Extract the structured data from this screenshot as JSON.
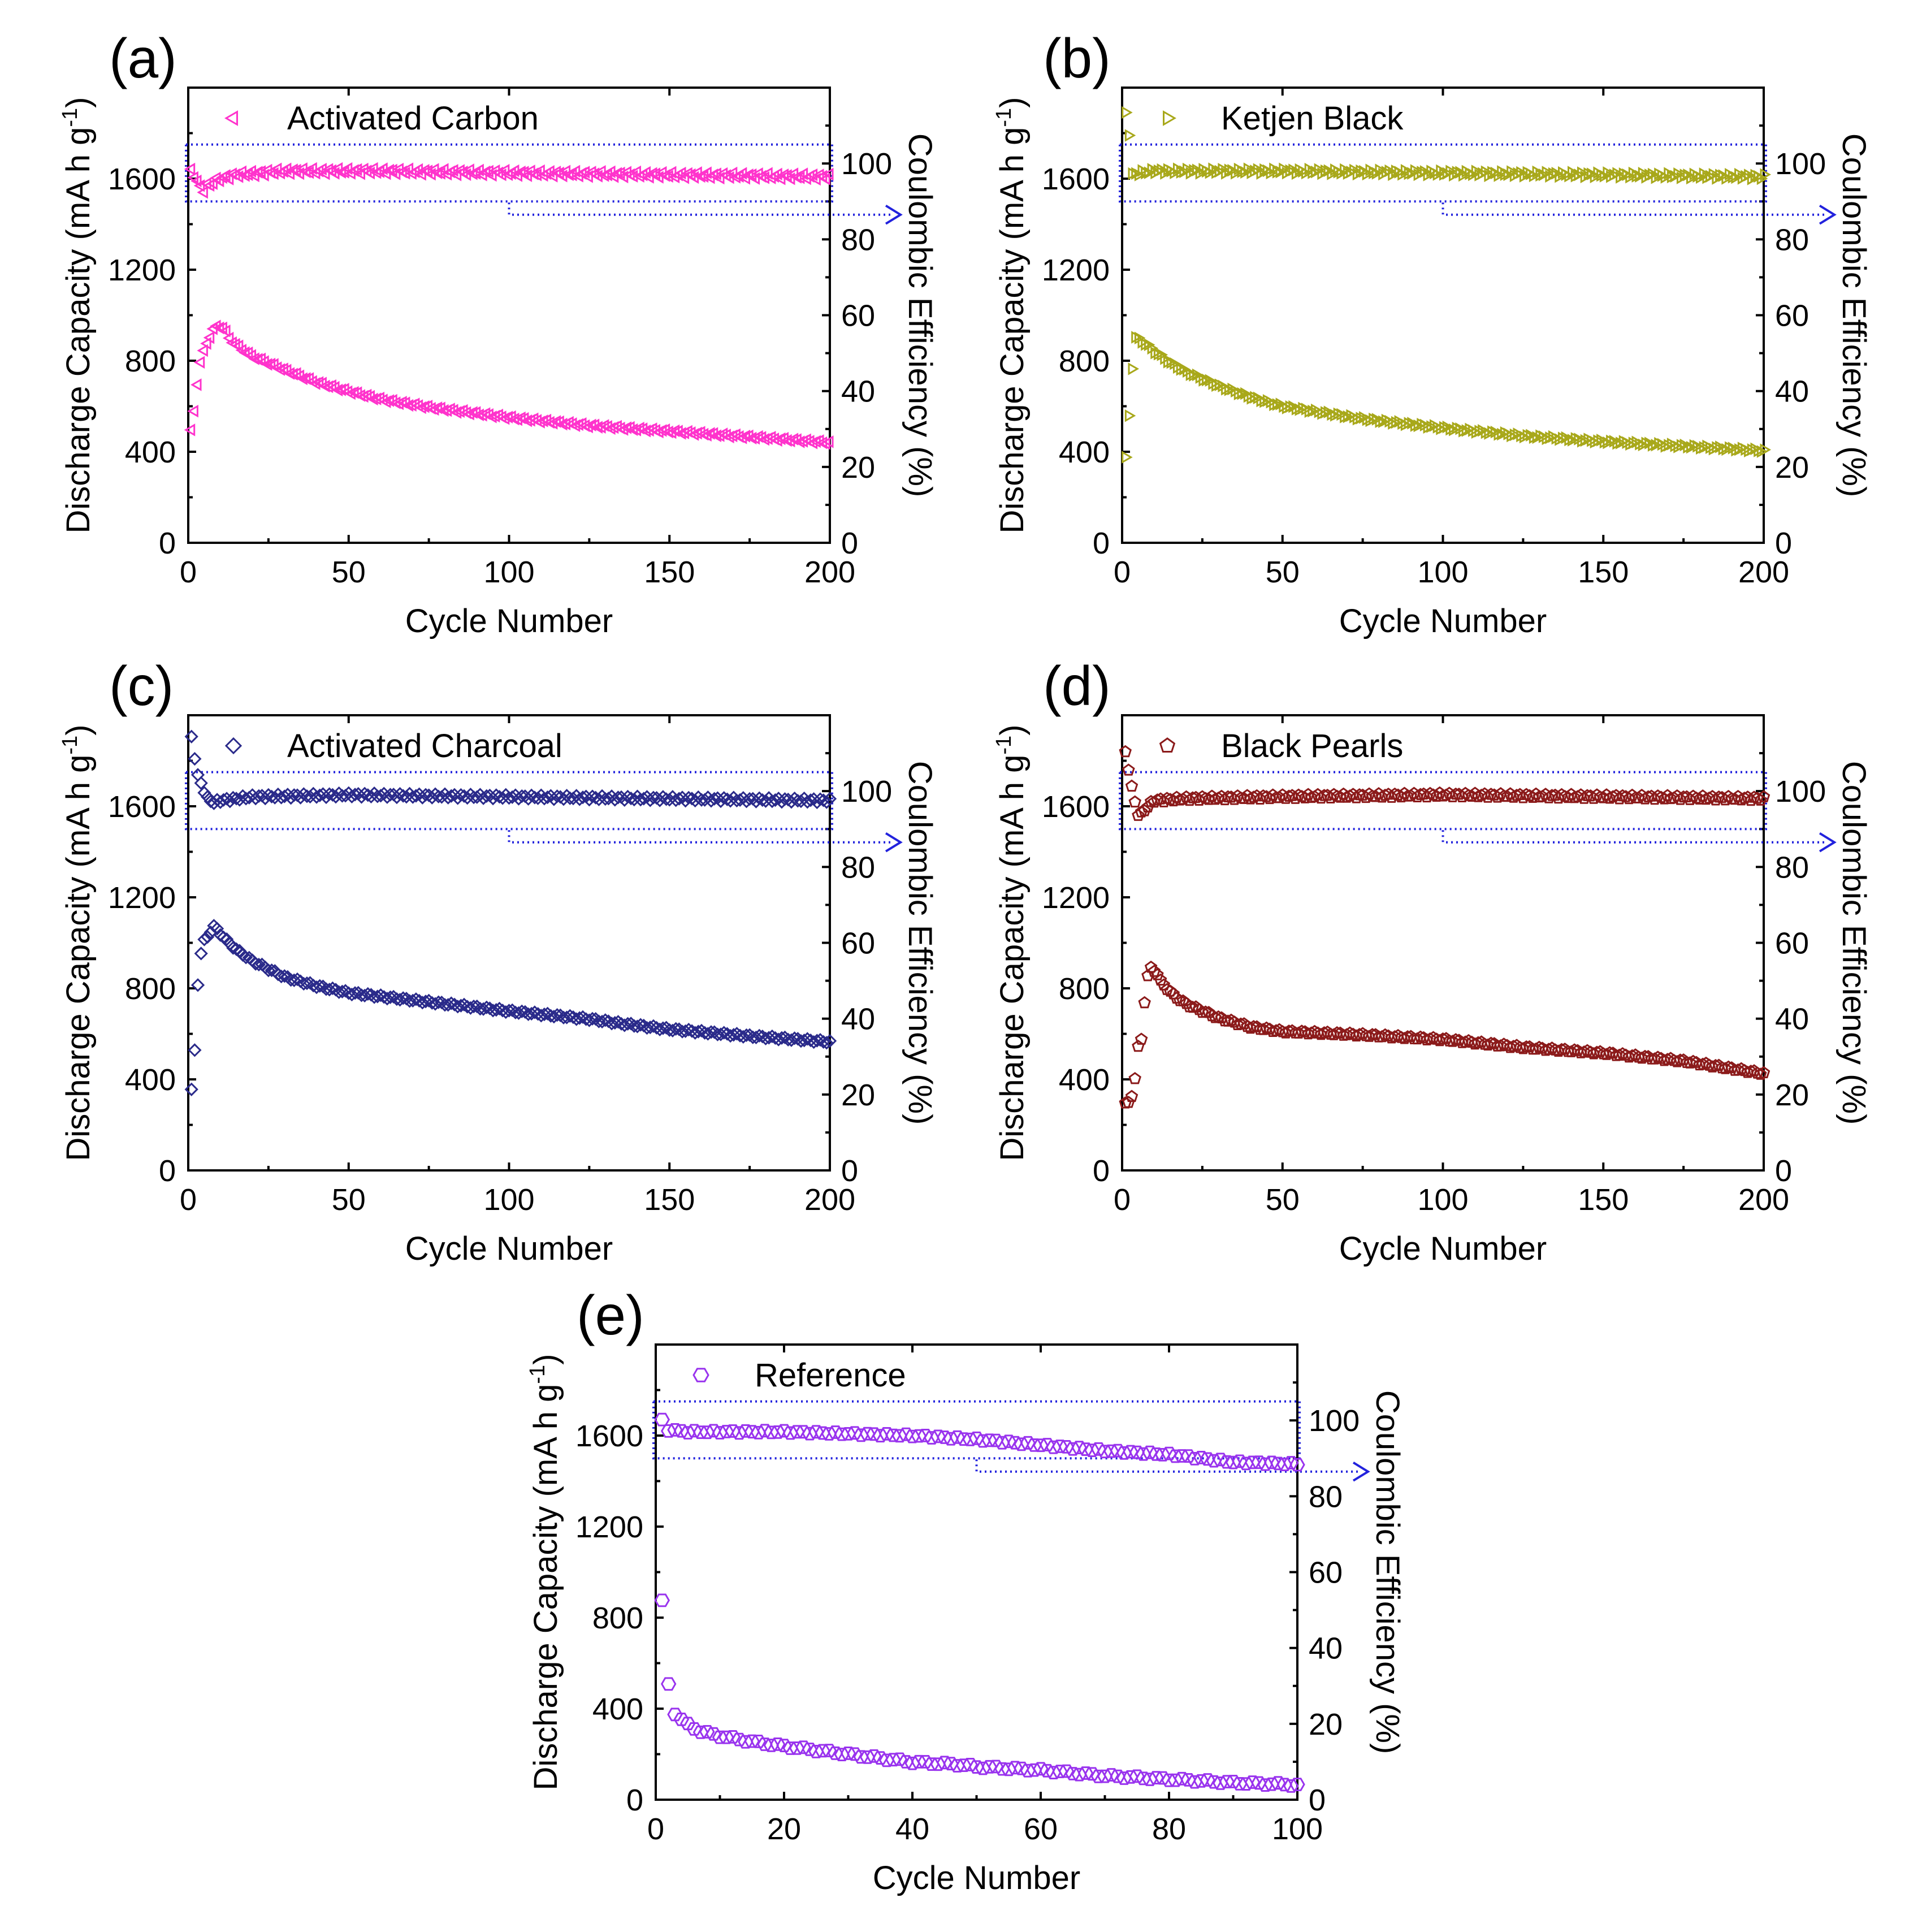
{
  "chart_data": [
    {
      "id": "a",
      "type": "scatter",
      "panel_label": "(a)",
      "legend": "Activated Carbon",
      "marker": "triangle-left",
      "color": "#ff33cc",
      "xlabel": "Cycle Number",
      "ylabel": "Discharge Capacity (mA h g",
      "ylabel_sup": "-1",
      "ylabel_tail": ")",
      "y2label": "Coulombic Efficiency (%)",
      "xlim": [
        0,
        200
      ],
      "ylim": [
        0,
        2000
      ],
      "y2lim": [
        0,
        120
      ],
      "xticks": [
        "0",
        "50",
        "100",
        "150",
        "200"
      ],
      "yticks": [
        "0",
        "400",
        "800",
        "1200",
        "1600"
      ],
      "y2ticks": [
        "0",
        "20",
        "40",
        "60",
        "80",
        "100"
      ],
      "n": 200,
      "capacity_points": [
        [
          1,
          490
        ],
        [
          2,
          580
        ],
        [
          3,
          700
        ],
        [
          4,
          790
        ],
        [
          5,
          840
        ],
        [
          6,
          880
        ],
        [
          7,
          905
        ],
        [
          8,
          935
        ],
        [
          9,
          950
        ],
        [
          10,
          950
        ],
        [
          11,
          945
        ],
        [
          12,
          925
        ],
        [
          13,
          900
        ],
        [
          15,
          870
        ],
        [
          20,
          820
        ],
        [
          30,
          760
        ],
        [
          40,
          705
        ],
        [
          50,
          665
        ],
        [
          60,
          630
        ],
        [
          75,
          595
        ],
        [
          100,
          550
        ],
        [
          125,
          515
        ],
        [
          150,
          490
        ],
        [
          175,
          465
        ],
        [
          200,
          440
        ]
      ],
      "efficiency_points": [
        [
          1,
          98
        ],
        [
          2,
          97
        ],
        [
          3,
          95
        ],
        [
          4,
          94
        ],
        [
          5,
          93
        ],
        [
          6,
          94
        ],
        [
          8,
          95
        ],
        [
          10,
          96
        ],
        [
          15,
          97
        ],
        [
          30,
          98
        ],
        [
          60,
          98
        ],
        [
          100,
          97.5
        ],
        [
          150,
          97
        ],
        [
          200,
          96.5
        ]
      ],
      "efficiency_noise": 0.7,
      "highlight_box_pct": [
        90,
        105
      ],
      "arrow_from_cycle": 100
    },
    {
      "id": "b",
      "type": "scatter",
      "panel_label": "(b)",
      "legend": "Ketjen Black",
      "marker": "triangle-right",
      "color": "#a8a81a",
      "xlabel": "Cycle Number",
      "ylabel": "Discharge Capacity (mA h g",
      "ylabel_sup": "-1",
      "ylabel_tail": ")",
      "y2label": "Coulombic Efficiency (%)",
      "xlim": [
        0,
        200
      ],
      "ylim": [
        0,
        2000
      ],
      "y2lim": [
        0,
        120
      ],
      "xticks": [
        "0",
        "50",
        "100",
        "150",
        "200"
      ],
      "yticks": [
        "0",
        "400",
        "800",
        "1200",
        "1600"
      ],
      "y2ticks": [
        "0",
        "20",
        "40",
        "60",
        "80",
        "100"
      ],
      "n": 200,
      "capacity_points": [
        [
          1,
          370
        ],
        [
          2,
          560
        ],
        [
          3,
          770
        ],
        [
          4,
          900
        ],
        [
          5,
          895
        ],
        [
          6,
          885
        ],
        [
          8,
          865
        ],
        [
          10,
          840
        ],
        [
          15,
          790
        ],
        [
          20,
          750
        ],
        [
          30,
          690
        ],
        [
          40,
          640
        ],
        [
          50,
          600
        ],
        [
          75,
          545
        ],
        [
          100,
          505
        ],
        [
          125,
          470
        ],
        [
          150,
          445
        ],
        [
          175,
          425
        ],
        [
          200,
          405
        ]
      ],
      "efficiency_points": [
        [
          1,
          113
        ],
        [
          2,
          108
        ],
        [
          3,
          97
        ],
        [
          5,
          97.5
        ],
        [
          10,
          98
        ],
        [
          50,
          98
        ],
        [
          100,
          97.5
        ],
        [
          150,
          97
        ],
        [
          200,
          96.5
        ]
      ],
      "efficiency_noise": 0.6,
      "highlight_box_pct": [
        90,
        105
      ],
      "arrow_from_cycle": 100
    },
    {
      "id": "c",
      "type": "scatter",
      "panel_label": "(c)",
      "legend": "Activated Charcoal",
      "marker": "diamond",
      "color": "#2a2a8a",
      "xlabel": "Cycle Number",
      "ylabel": "Discharge Capacity (mA h g",
      "ylabel_sup": "-1",
      "ylabel_tail": ")",
      "y2label": "Coulombic Efficiency (%)",
      "xlim": [
        0,
        200
      ],
      "ylim": [
        0,
        2000
      ],
      "y2lim": [
        0,
        120
      ],
      "xticks": [
        "0",
        "50",
        "100",
        "150",
        "200"
      ],
      "yticks": [
        "0",
        "400",
        "800",
        "1200",
        "1600"
      ],
      "y2ticks": [
        "0",
        "20",
        "40",
        "60",
        "80",
        "100"
      ],
      "n": 200,
      "capacity_points": [
        [
          1,
          350
        ],
        [
          2,
          530
        ],
        [
          3,
          820
        ],
        [
          4,
          950
        ],
        [
          5,
          1010
        ],
        [
          6,
          1030
        ],
        [
          7,
          1050
        ],
        [
          8,
          1070
        ],
        [
          9,
          1060
        ],
        [
          10,
          1040
        ],
        [
          12,
          1010
        ],
        [
          15,
          970
        ],
        [
          20,
          920
        ],
        [
          30,
          850
        ],
        [
          40,
          810
        ],
        [
          50,
          780
        ],
        [
          75,
          740
        ],
        [
          100,
          700
        ],
        [
          125,
          665
        ],
        [
          135,
          645
        ],
        [
          150,
          620
        ],
        [
          175,
          590
        ],
        [
          200,
          565
        ]
      ],
      "efficiency_points": [
        [
          1,
          114
        ],
        [
          2,
          109
        ],
        [
          3,
          104
        ],
        [
          4,
          102
        ],
        [
          5,
          100
        ],
        [
          6,
          98
        ],
        [
          8,
          97
        ],
        [
          10,
          97.5
        ],
        [
          20,
          98.5
        ],
        [
          50,
          99
        ],
        [
          100,
          98.5
        ],
        [
          150,
          98
        ],
        [
          200,
          97.5
        ]
      ],
      "efficiency_noise": 0.5,
      "highlight_box_pct": [
        90,
        105
      ],
      "arrow_from_cycle": 100
    },
    {
      "id": "d",
      "type": "scatter",
      "panel_label": "(d)",
      "legend": "Black Pearls",
      "marker": "pentagon",
      "color": "#8b1a1a",
      "xlabel": "Cycle Number",
      "ylabel": "Discharge Capacity (mA h g",
      "ylabel_sup": "-1",
      "ylabel_tail": ")",
      "y2label": "Coulombic Efficiency (%)",
      "xlim": [
        0,
        200
      ],
      "ylim": [
        0,
        2000
      ],
      "y2lim": [
        0,
        120
      ],
      "xticks": [
        "0",
        "50",
        "100",
        "150",
        "200"
      ],
      "yticks": [
        "0",
        "400",
        "800",
        "1200",
        "1600"
      ],
      "y2ticks": [
        "0",
        "20",
        "40",
        "60",
        "80",
        "100"
      ],
      "n": 200,
      "capacity_points": [
        [
          1,
          290
        ],
        [
          2,
          300
        ],
        [
          3,
          330
        ],
        [
          4,
          400
        ],
        [
          5,
          540
        ],
        [
          6,
          580
        ],
        [
          7,
          740
        ],
        [
          8,
          850
        ],
        [
          9,
          890
        ],
        [
          10,
          880
        ],
        [
          11,
          860
        ],
        [
          12,
          830
        ],
        [
          14,
          800
        ],
        [
          16,
          770
        ],
        [
          20,
          730
        ],
        [
          30,
          670
        ],
        [
          40,
          630
        ],
        [
          50,
          610
        ],
        [
          75,
          595
        ],
        [
          100,
          575
        ],
        [
          125,
          540
        ],
        [
          150,
          515
        ],
        [
          175,
          480
        ],
        [
          200,
          425
        ]
      ],
      "efficiency_points": [
        [
          1,
          110
        ],
        [
          2,
          106
        ],
        [
          3,
          101
        ],
        [
          4,
          97
        ],
        [
          5,
          94
        ],
        [
          6,
          94
        ],
        [
          8,
          96
        ],
        [
          10,
          97.5
        ],
        [
          20,
          98
        ],
        [
          50,
          98.5
        ],
        [
          100,
          99
        ],
        [
          150,
          98.5
        ],
        [
          200,
          98
        ]
      ],
      "efficiency_noise": 0.5,
      "highlight_box_pct": [
        90,
        105
      ],
      "arrow_from_cycle": 100
    },
    {
      "id": "e",
      "type": "scatter",
      "panel_label": "(e)",
      "legend": "Reference",
      "marker": "hexagon",
      "color": "#9933ee",
      "xlabel": "Cycle Number",
      "ylabel": "Discharge Capacity (mA h g",
      "ylabel_sup": "-1",
      "ylabel_tail": ")",
      "y2label": "Coulombic Efficiency (%)",
      "xlim": [
        0,
        100
      ],
      "ylim": [
        0,
        2000
      ],
      "y2lim": [
        0,
        120
      ],
      "xticks": [
        "0",
        "20",
        "40",
        "60",
        "80",
        "100"
      ],
      "yticks": [
        "0",
        "400",
        "800",
        "1200",
        "1600"
      ],
      "y2ticks": [
        "0",
        "20",
        "40",
        "60",
        "80",
        "100"
      ],
      "n": 100,
      "capacity_points": [
        [
          1,
          870
        ],
        [
          2,
          510
        ],
        [
          3,
          380
        ],
        [
          4,
          350
        ],
        [
          5,
          330
        ],
        [
          7,
          300
        ],
        [
          10,
          280
        ],
        [
          15,
          255
        ],
        [
          20,
          235
        ],
        [
          30,
          200
        ],
        [
          40,
          165
        ],
        [
          47,
          155
        ],
        [
          50,
          145
        ],
        [
          60,
          130
        ],
        [
          70,
          105
        ],
        [
          80,
          90
        ],
        [
          90,
          75
        ],
        [
          100,
          65
        ]
      ],
      "efficiency_points": [
        [
          1,
          100
        ],
        [
          2,
          97.5
        ],
        [
          5,
          97
        ],
        [
          20,
          97
        ],
        [
          40,
          96
        ],
        [
          50,
          95
        ],
        [
          60,
          93.5
        ],
        [
          70,
          92
        ],
        [
          80,
          91
        ],
        [
          85,
          90
        ],
        [
          90,
          89
        ],
        [
          100,
          88.5
        ]
      ],
      "efficiency_noise": 0.3,
      "highlight_box_pct": [
        90,
        105
      ],
      "arrow_from_cycle": 50
    }
  ]
}
